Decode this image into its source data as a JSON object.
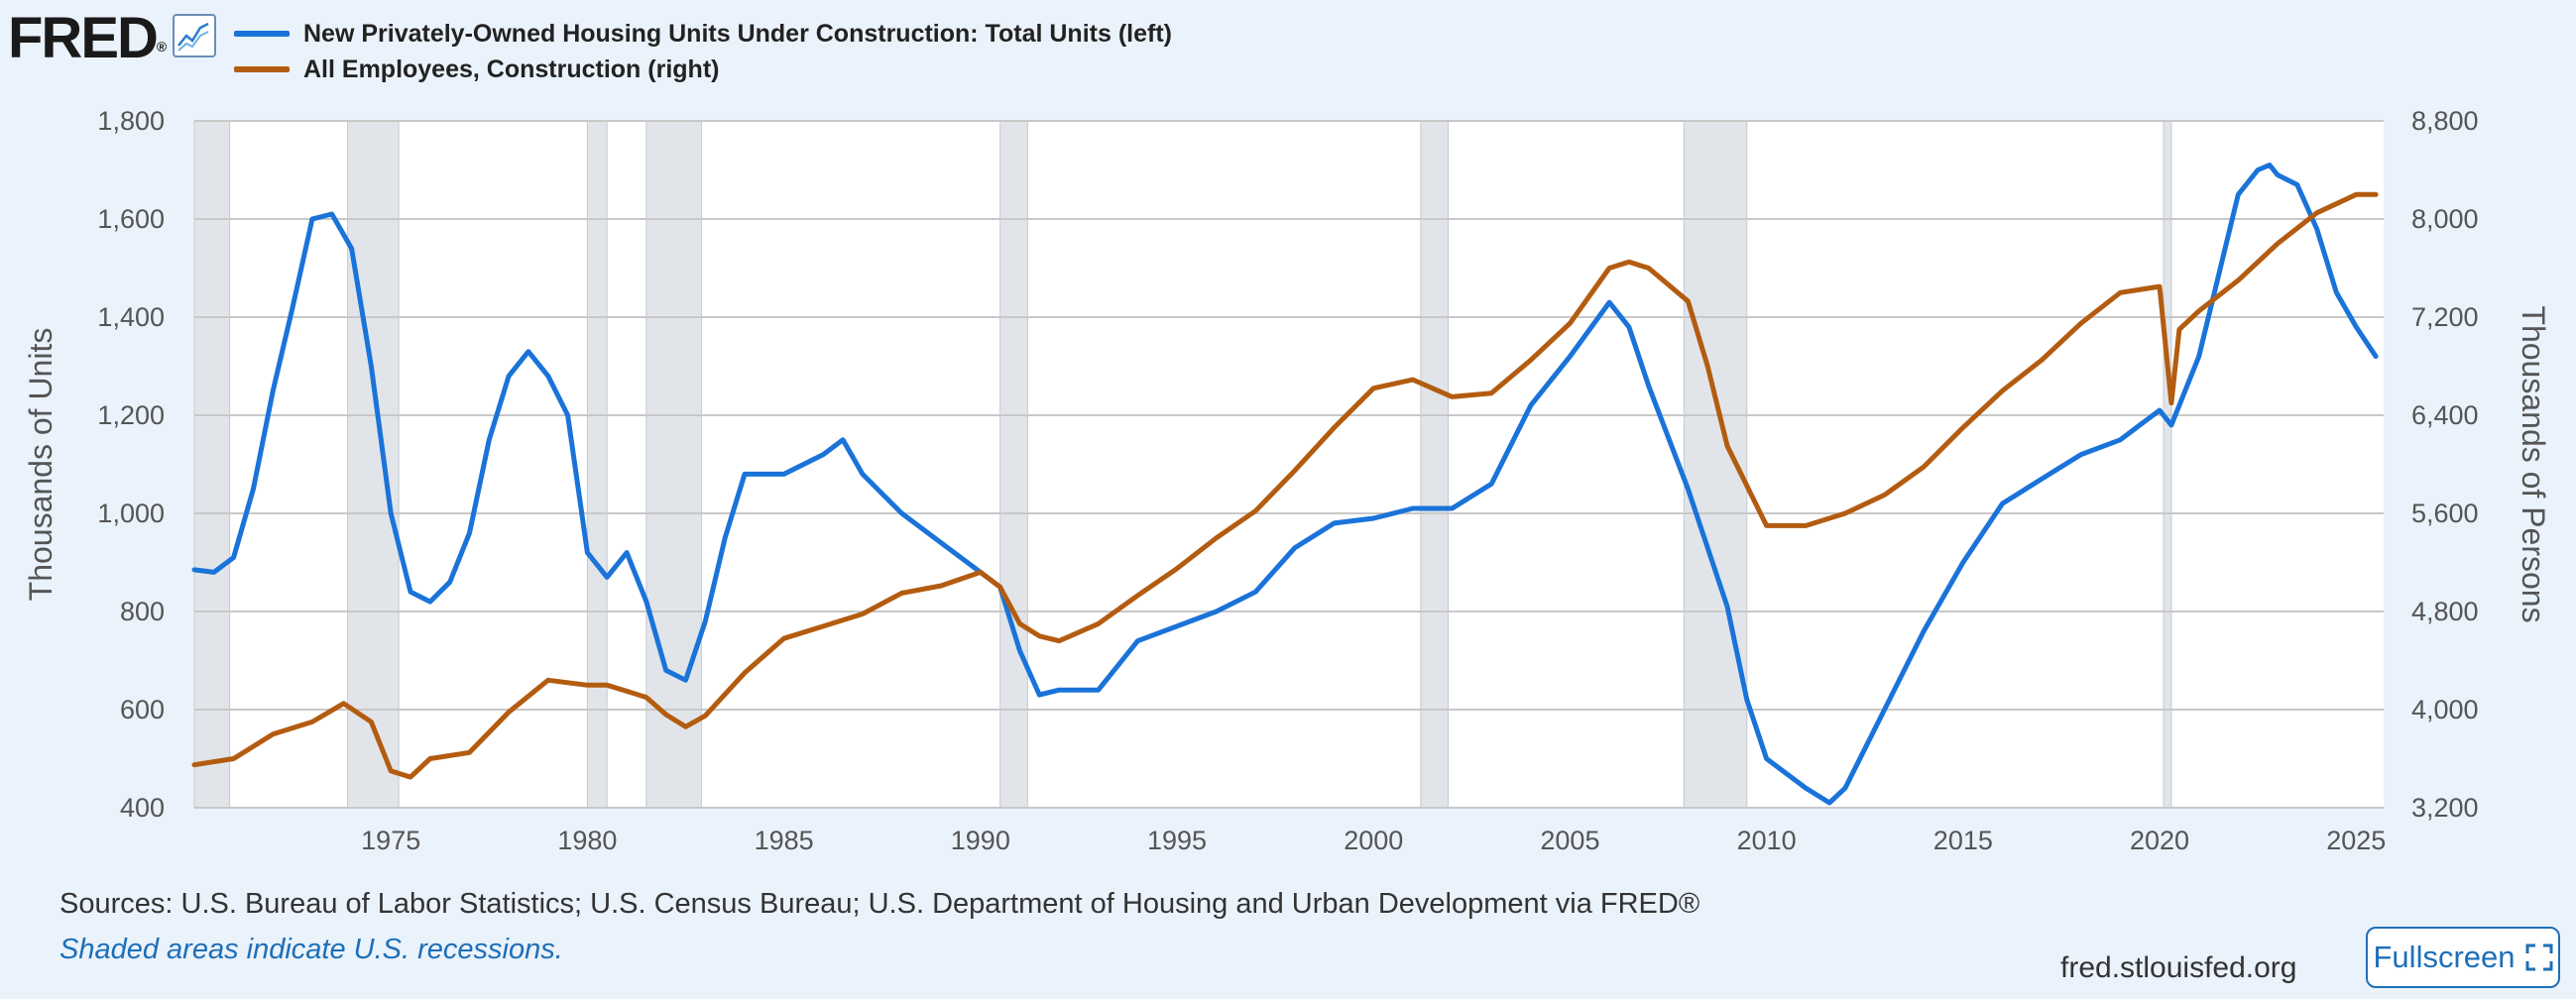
{
  "brand": {
    "logo_text": "FRED",
    "reg_mark": "®",
    "icon_name": "line-chart-icon"
  },
  "legend": [
    {
      "label": "New Privately-Owned Housing Units Under Construction: Total Units (left)",
      "color": "#1a73d9"
    },
    {
      "label": "All Employees, Construction (right)",
      "color": "#b35c10"
    }
  ],
  "chart_data": {
    "type": "line",
    "x_range": [
      1970,
      2025.7
    ],
    "left_axis": {
      "title": "Thousands of Units",
      "ylim": [
        400,
        1800
      ],
      "ticks": [
        400,
        600,
        800,
        1000,
        1200,
        1400,
        1600,
        1800
      ],
      "tick_labels": [
        "400",
        "600",
        "800",
        "1,000",
        "1,200",
        "1,400",
        "1,600",
        "1,800"
      ]
    },
    "right_axis": {
      "title": "Thousands of Persons",
      "ylim": [
        3200,
        8800
      ],
      "ticks": [
        3200,
        4000,
        4800,
        5600,
        6400,
        7200,
        8000,
        8800
      ],
      "tick_labels": [
        "3,200",
        "4,000",
        "4,800",
        "5,600",
        "6,400",
        "7,200",
        "8,000",
        "8,800"
      ]
    },
    "x_ticks": [
      1975,
      1980,
      1985,
      1990,
      1995,
      2000,
      2005,
      2010,
      2015,
      2020,
      2025
    ],
    "x_tick_labels": [
      "1975",
      "1980",
      "1985",
      "1990",
      "1995",
      "2000",
      "2005",
      "2010",
      "2015",
      "2020",
      "2025"
    ],
    "recessions": [
      [
        1970.0,
        1970.9
      ],
      [
        1973.9,
        1975.2
      ],
      [
        1980.0,
        1980.5
      ],
      [
        1981.5,
        1982.9
      ],
      [
        1990.5,
        1991.2
      ],
      [
        2001.2,
        2001.9
      ],
      [
        2007.9,
        2009.5
      ],
      [
        2020.1,
        2020.3
      ]
    ],
    "grid": true,
    "series": [
      {
        "name": "New Privately-Owned Housing Units Under Construction: Total Units (left)",
        "axis": "left",
        "color": "#1a73d9",
        "x": [
          1970.0,
          1970.5,
          1971.0,
          1971.5,
          1972.0,
          1972.5,
          1973.0,
          1973.5,
          1974.0,
          1974.5,
          1975.0,
          1975.5,
          1976.0,
          1976.5,
          1977.0,
          1977.5,
          1978.0,
          1978.5,
          1979.0,
          1979.5,
          1980.0,
          1980.5,
          1981.0,
          1981.5,
          1982.0,
          1982.5,
          1983.0,
          1983.5,
          1984.0,
          1985.0,
          1986.0,
          1986.5,
          1987.0,
          1988.0,
          1989.0,
          1990.0,
          1990.5,
          1991.0,
          1991.5,
          1992.0,
          1993.0,
          1994.0,
          1995.0,
          1996.0,
          1997.0,
          1998.0,
          1999.0,
          2000.0,
          2001.0,
          2002.0,
          2003.0,
          2004.0,
          2005.0,
          2006.0,
          2006.5,
          2007.0,
          2008.0,
          2009.0,
          2009.5,
          2010.0,
          2011.0,
          2011.6,
          2012.0,
          2013.0,
          2014.0,
          2015.0,
          2016.0,
          2017.0,
          2018.0,
          2019.0,
          2020.0,
          2020.3,
          2021.0,
          2022.0,
          2022.5,
          2022.8,
          2023.0,
          2023.5,
          2024.0,
          2024.5,
          2025.0,
          2025.5
        ],
        "y": [
          885,
          880,
          910,
          1050,
          1250,
          1420,
          1600,
          1610,
          1540,
          1300,
          1000,
          840,
          820,
          860,
          960,
          1150,
          1280,
          1330,
          1280,
          1200,
          920,
          870,
          920,
          820,
          680,
          660,
          780,
          950,
          1080,
          1080,
          1120,
          1150,
          1080,
          1000,
          940,
          880,
          850,
          720,
          630,
          640,
          640,
          740,
          770,
          800,
          840,
          930,
          980,
          990,
          1010,
          1010,
          1060,
          1220,
          1320,
          1430,
          1380,
          1260,
          1050,
          810,
          620,
          500,
          440,
          410,
          440,
          600,
          760,
          900,
          1020,
          1070,
          1120,
          1150,
          1210,
          1180,
          1320,
          1650,
          1700,
          1710,
          1690,
          1670,
          1580,
          1450,
          1380,
          1320
        ]
      },
      {
        "name": "All Employees, Construction (right)",
        "axis": "right",
        "color": "#b35c10",
        "x": [
          1970.0,
          1971.0,
          1972.0,
          1973.0,
          1973.8,
          1974.5,
          1975.0,
          1975.5,
          1976.0,
          1977.0,
          1978.0,
          1979.0,
          1980.0,
          1980.5,
          1981.0,
          1981.5,
          1982.0,
          1982.5,
          1983.0,
          1984.0,
          1985.0,
          1986.0,
          1987.0,
          1988.0,
          1989.0,
          1990.0,
          1990.5,
          1991.0,
          1991.5,
          1992.0,
          1993.0,
          1994.0,
          1995.0,
          1996.0,
          1997.0,
          1998.0,
          1999.0,
          2000.0,
          2001.0,
          2002.0,
          2003.0,
          2004.0,
          2005.0,
          2006.0,
          2006.5,
          2007.0,
          2008.0,
          2008.5,
          2009.0,
          2010.0,
          2011.0,
          2012.0,
          2013.0,
          2014.0,
          2015.0,
          2016.0,
          2017.0,
          2018.0,
          2019.0,
          2020.0,
          2020.3,
          2020.5,
          2021.0,
          2022.0,
          2023.0,
          2024.0,
          2025.0,
          2025.5
        ],
        "y": [
          3550,
          3600,
          3800,
          3900,
          4050,
          3900,
          3500,
          3450,
          3600,
          3650,
          3980,
          4240,
          4200,
          4200,
          4150,
          4100,
          3960,
          3860,
          3950,
          4300,
          4580,
          4680,
          4780,
          4950,
          5010,
          5120,
          5000,
          4700,
          4600,
          4560,
          4700,
          4930,
          5150,
          5400,
          5620,
          5950,
          6300,
          6620,
          6690,
          6550,
          6580,
          6850,
          7150,
          7600,
          7650,
          7600,
          7330,
          6800,
          6150,
          5500,
          5500,
          5600,
          5750,
          5980,
          6300,
          6600,
          6850,
          7150,
          7400,
          7450,
          6500,
          7100,
          7250,
          7500,
          7800,
          8050,
          8200,
          8200
        ]
      }
    ]
  },
  "footer": {
    "sources": "Sources: U.S. Bureau of Labor Statistics; U.S. Census Bureau; U.S. Department of Housing and Urban Development via FRED®",
    "note": "Shaded areas indicate U.S. recessions.",
    "site": "fred.stlouisfed.org",
    "fullscreen_label": "Fullscreen",
    "fullscreen_icon": "fullscreen-icon"
  }
}
